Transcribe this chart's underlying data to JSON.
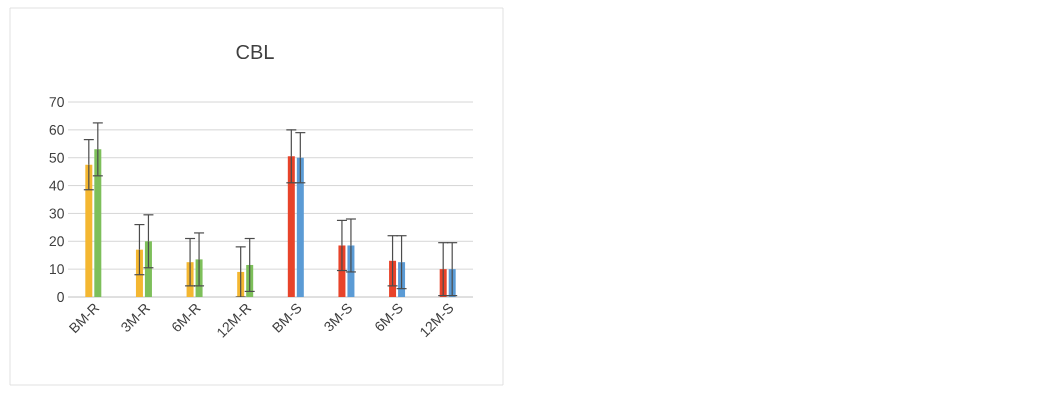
{
  "chart_data": {
    "type": "bar",
    "title": "CBL",
    "categories": [
      "BM-R",
      "3M-R",
      "6M-R",
      "12M-R",
      "BM-S",
      "3M-S",
      "6M-S",
      "12M-S"
    ],
    "series": [
      {
        "colors": [
          "#f4b731",
          "#f4b731",
          "#f4b731",
          "#f4b731",
          "#e8432a",
          "#e8432a",
          "#e8432a",
          "#e8432a"
        ],
        "values": [
          47.5,
          17,
          12.5,
          9,
          50.5,
          18.5,
          13,
          10
        ],
        "errors": [
          9,
          9,
          8.5,
          9,
          9.5,
          9,
          9,
          9.5
        ]
      },
      {
        "colors": [
          "#7dbf5a",
          "#7dbf5a",
          "#7dbf5a",
          "#7dbf5a",
          "#5b9bd5",
          "#5b9bd5",
          "#5b9bd5",
          "#5b9bd5"
        ],
        "values": [
          53,
          20,
          13.5,
          11.5,
          50,
          18.5,
          12.5,
          10
        ],
        "errors": [
          9.5,
          9.5,
          9.5,
          9.5,
          9,
          9.5,
          9.5,
          9.5
        ]
      }
    ],
    "ylim": [
      0,
      70
    ],
    "yticks": [
      0,
      10,
      20,
      30,
      40,
      50,
      60,
      70
    ],
    "grid": "y"
  }
}
